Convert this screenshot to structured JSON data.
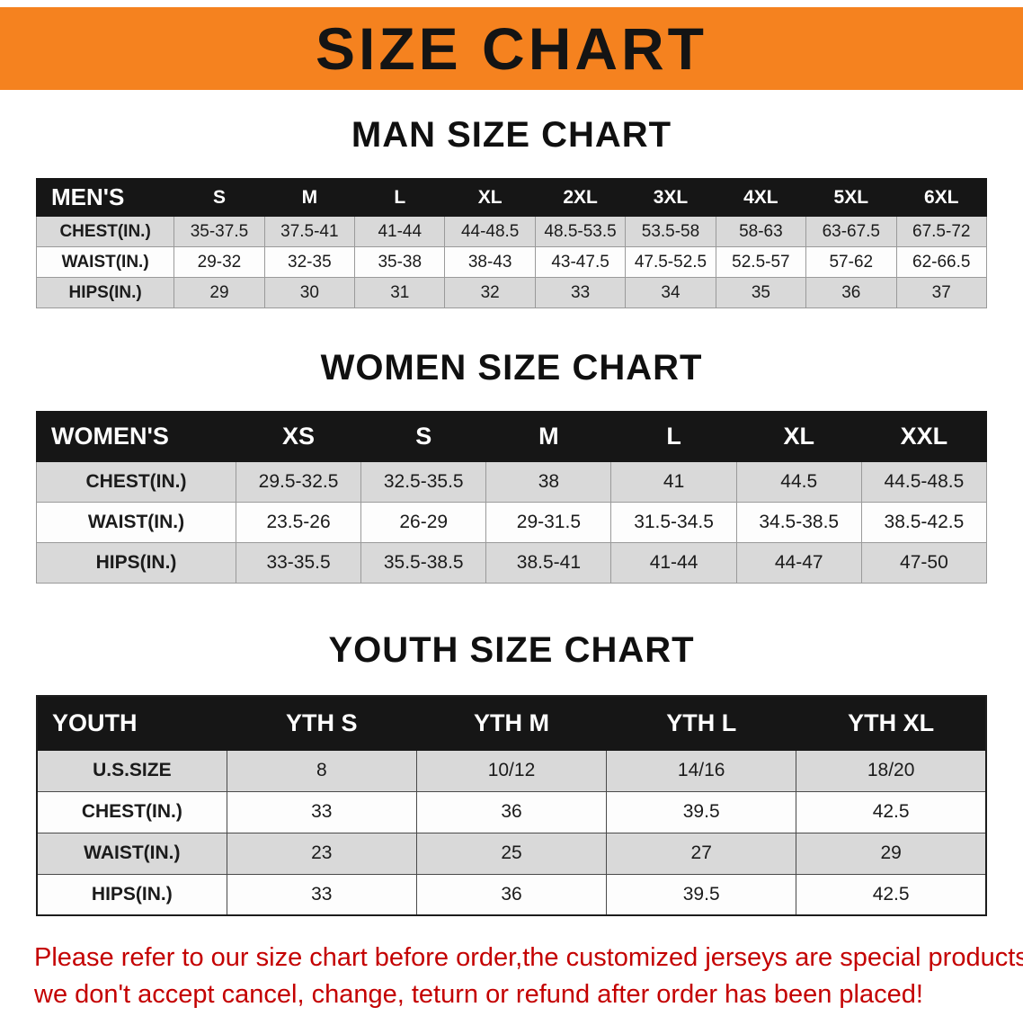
{
  "banner": {
    "title": "SIZE CHART"
  },
  "sections": {
    "men": {
      "heading": "MAN SIZE CHART"
    },
    "women": {
      "heading": "WOMEN SIZE CHART"
    },
    "youth": {
      "heading": "YOUTH SIZE CHART"
    }
  },
  "chart_data": [
    {
      "type": "table",
      "title": "MAN SIZE CHART",
      "columns": [
        "MEN'S",
        "S",
        "M",
        "L",
        "XL",
        "2XL",
        "3XL",
        "4XL",
        "5XL",
        "6XL"
      ],
      "rows": [
        [
          "CHEST(IN.)",
          "35-37.5",
          "37.5-41",
          "41-44",
          "44-48.5",
          "48.5-53.5",
          "53.5-58",
          "58-63",
          "63-67.5",
          "67.5-72"
        ],
        [
          "WAIST(IN.)",
          "29-32",
          "32-35",
          "35-38",
          "38-43",
          "43-47.5",
          "47.5-52.5",
          "52.5-57",
          "57-62",
          "62-66.5"
        ],
        [
          "HIPS(IN.)",
          "29",
          "30",
          "31",
          "32",
          "33",
          "34",
          "35",
          "36",
          "37"
        ]
      ]
    },
    {
      "type": "table",
      "title": "WOMEN SIZE CHART",
      "columns": [
        "WOMEN'S",
        "XS",
        "S",
        "M",
        "L",
        "XL",
        "XXL"
      ],
      "rows": [
        [
          "CHEST(IN.)",
          "29.5-32.5",
          "32.5-35.5",
          "38",
          "41",
          "44.5",
          "44.5-48.5"
        ],
        [
          "WAIST(IN.)",
          "23.5-26",
          "26-29",
          "29-31.5",
          "31.5-34.5",
          "34.5-38.5",
          "38.5-42.5"
        ],
        [
          "HIPS(IN.)",
          "33-35.5",
          "35.5-38.5",
          "38.5-41",
          "41-44",
          "44-47",
          "47-50"
        ]
      ]
    },
    {
      "type": "table",
      "title": "YOUTH SIZE CHART",
      "columns": [
        "YOUTH",
        "YTH S",
        "YTH M",
        "YTH L",
        "YTH XL"
      ],
      "rows": [
        [
          "U.S.SIZE",
          "8",
          "10/12",
          "14/16",
          "18/20"
        ],
        [
          "CHEST(IN.)",
          "33",
          "36",
          "39.5",
          "42.5"
        ],
        [
          "WAIST(IN.)",
          "23",
          "25",
          "27",
          "29"
        ],
        [
          "HIPS(IN.)",
          "33",
          "36",
          "39.5",
          "42.5"
        ]
      ]
    }
  ],
  "footer": {
    "line1": "Please refer to our size chart before order,the customized jerseys are special products,",
    "line2": "we don't accept cancel, change, teturn or refund after order has been placed!"
  },
  "colors": {
    "banner_bg": "#f5821f",
    "header_bg": "#161616",
    "row_alt_bg": "#d9d9d9",
    "footer_text": "#c40000"
  }
}
